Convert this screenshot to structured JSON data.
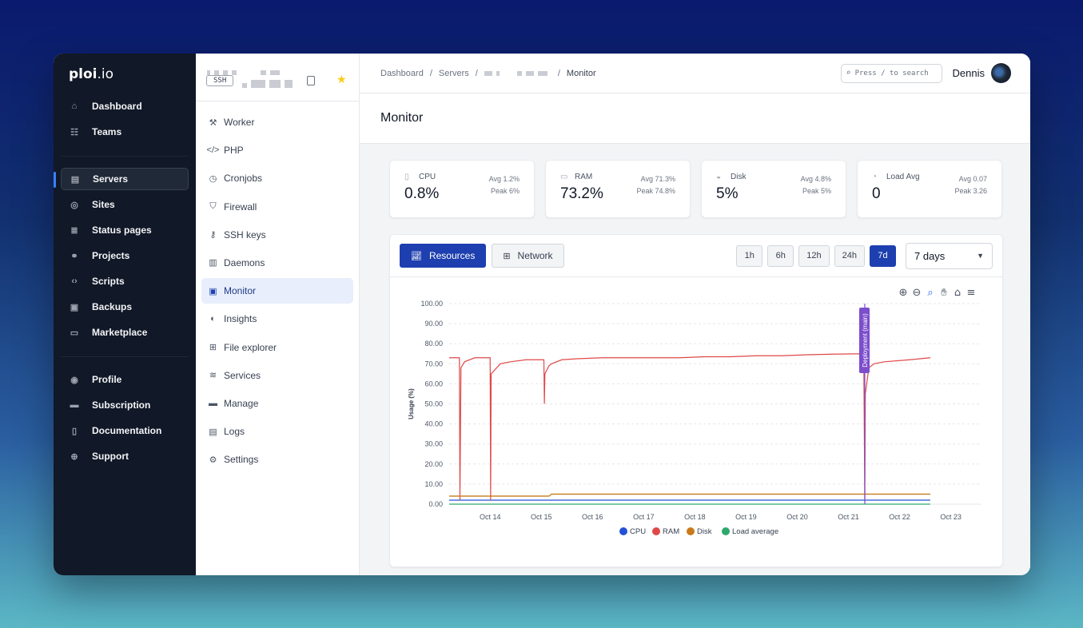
{
  "brand": {
    "name_bold": "ploi",
    "name_rest": ".io"
  },
  "nav": {
    "group1": [
      {
        "label": "Dashboard",
        "icon": "home-icon",
        "glyph": "⌂"
      },
      {
        "label": "Teams",
        "icon": "users-icon",
        "glyph": "☷"
      }
    ],
    "group2": [
      {
        "label": "Servers",
        "icon": "server-icon",
        "glyph": "▤",
        "active": true
      },
      {
        "label": "Sites",
        "icon": "globe-icon",
        "glyph": "◎"
      },
      {
        "label": "Status pages",
        "icon": "database-icon",
        "glyph": "≣"
      },
      {
        "label": "Projects",
        "icon": "flow-icon",
        "glyph": "⚭"
      },
      {
        "label": "Scripts",
        "icon": "code-icon",
        "glyph": "‹›"
      },
      {
        "label": "Backups",
        "icon": "archive-icon",
        "glyph": "▣"
      },
      {
        "label": "Marketplace",
        "icon": "store-icon",
        "glyph": "▭"
      }
    ],
    "group3": [
      {
        "label": "Profile",
        "icon": "user-circle-icon",
        "glyph": "◉"
      },
      {
        "label": "Subscription",
        "icon": "credit-card-icon",
        "glyph": "▬"
      },
      {
        "label": "Documentation",
        "icon": "book-icon",
        "glyph": "▯"
      },
      {
        "label": "Support",
        "icon": "lifebuoy-icon",
        "glyph": "⊕"
      }
    ]
  },
  "server": {
    "ssh_label": "SSH"
  },
  "subnav": [
    {
      "label": "Worker",
      "icon": "hammer-icon",
      "glyph": "⚒"
    },
    {
      "label": "PHP",
      "icon": "code-icon",
      "glyph": "</>"
    },
    {
      "label": "Cronjobs",
      "icon": "clock-icon",
      "glyph": "◷"
    },
    {
      "label": "Firewall",
      "icon": "shield-icon",
      "glyph": "⛉"
    },
    {
      "label": "SSH keys",
      "icon": "key-icon",
      "glyph": "⚷"
    },
    {
      "label": "Daemons",
      "icon": "chip-icon",
      "glyph": "▥"
    },
    {
      "label": "Monitor",
      "icon": "monitor-chart-icon",
      "glyph": "▣",
      "active": true
    },
    {
      "label": "Insights",
      "icon": "insights-icon",
      "glyph": "◐"
    },
    {
      "label": "File explorer",
      "icon": "folder-tree-icon",
      "glyph": "⊞"
    },
    {
      "label": "Services",
      "icon": "services-icon",
      "glyph": "≋"
    },
    {
      "label": "Manage",
      "icon": "briefcase-icon",
      "glyph": "▬"
    },
    {
      "label": "Logs",
      "icon": "clipboard-icon",
      "glyph": "▤"
    },
    {
      "label": "Settings",
      "icon": "gear-icon",
      "glyph": "⚙"
    }
  ],
  "breadcrumb": {
    "items": [
      "Dashboard",
      "Servers"
    ],
    "separator": "/",
    "current": "Monitor"
  },
  "search": {
    "placeholder": "Press / to search"
  },
  "user": {
    "name": "Dennis"
  },
  "page": {
    "title": "Monitor"
  },
  "stats": [
    {
      "label": "CPU",
      "value": "0.8%",
      "avg": "Avg 1.2%",
      "peak": "Peak 6%",
      "icon": "cpu-icon",
      "glyph": "▯"
    },
    {
      "label": "RAM",
      "value": "73.2%",
      "avg": "Avg 71.3%",
      "peak": "Peak 74.8%",
      "icon": "memory-icon",
      "glyph": "▭"
    },
    {
      "label": "Disk",
      "value": "5%",
      "avg": "Avg 4.8%",
      "peak": "Peak 5%",
      "icon": "disk-icon",
      "glyph": "◒"
    },
    {
      "label": "Load Avg",
      "value": "0",
      "avg": "Avg 0.07",
      "peak": "Peak 3.26",
      "icon": "gauge-icon",
      "glyph": "◔"
    }
  ],
  "tabs": {
    "resources": "Resources",
    "network": "Network"
  },
  "ranges": [
    {
      "label": "1h"
    },
    {
      "label": "6h"
    },
    {
      "label": "12h"
    },
    {
      "label": "24h"
    },
    {
      "label": "7d",
      "active": true
    }
  ],
  "period_select": {
    "value": "7 days"
  },
  "colors": {
    "cpu": "#2450d8",
    "ram": "#e04848",
    "disk": "#c97a1a",
    "load": "#2ea86b",
    "annotation": "#7c4dcc",
    "accent": "#1d3faf"
  },
  "chart_data": {
    "type": "line",
    "ylabel": "Usage (%)",
    "ylim": [
      0,
      100
    ],
    "yticks": [
      "0.00",
      "10.00",
      "20.00",
      "30.00",
      "40.00",
      "50.00",
      "60.00",
      "70.00",
      "80.00",
      "90.00",
      "100.00"
    ],
    "x": [
      0,
      0.2,
      0.21,
      0.23,
      0.3,
      0.5,
      0.8,
      0.81,
      0.82,
      1.0,
      1.2,
      1.5,
      1.7,
      1.85,
      1.86,
      1.87,
      1.95,
      2.0,
      2.2,
      2.5,
      3.0,
      3.5,
      4.0,
      4.5,
      5.0,
      5.5,
      6.0,
      6.5,
      7.0,
      7.5,
      8.1,
      8.12,
      8.13,
      8.2,
      8.3,
      8.5,
      9.0,
      9.2,
      9.4
    ],
    "xlabels": [
      "Oct 14",
      "Oct 15",
      "Oct 16",
      "Oct 17",
      "Oct 18",
      "Oct 19",
      "Oct 20",
      "Oct 21",
      "Oct 22",
      "Oct 23"
    ],
    "xticks_at": [
      0.8,
      1.8,
      2.8,
      3.8,
      4.8,
      5.8,
      6.8,
      7.8,
      8.8,
      9.8
    ],
    "series": [
      {
        "name": "CPU",
        "values": [
          2,
          2,
          2,
          2,
          2,
          2,
          2,
          2,
          2,
          2,
          2,
          2,
          2,
          2,
          2,
          2,
          2,
          2,
          2,
          2,
          2,
          2,
          2,
          2,
          2,
          2,
          2,
          2,
          2,
          2,
          2,
          2,
          2,
          2,
          2,
          2,
          2,
          2,
          2
        ]
      },
      {
        "name": "RAM",
        "values": [
          73,
          73,
          2,
          68,
          71,
          73,
          73,
          2,
          65,
          70,
          71,
          72,
          72,
          72,
          50,
          65,
          69,
          70,
          72,
          72.5,
          73,
          73,
          73,
          73,
          73.5,
          73.5,
          74,
          74,
          74.5,
          74.8,
          75,
          1,
          55,
          68,
          70,
          71,
          72,
          72.5,
          73
        ]
      },
      {
        "name": "Disk",
        "values": [
          4,
          4,
          4,
          4,
          4,
          4,
          4,
          4,
          4,
          4,
          4,
          4,
          4,
          4,
          4,
          4,
          4,
          5,
          5,
          5,
          5,
          5,
          5,
          5,
          5,
          5,
          5,
          5,
          5,
          5,
          5,
          5,
          5,
          5,
          5,
          5,
          5,
          5,
          5
        ]
      },
      {
        "name": "Load average",
        "values": [
          0,
          0,
          0,
          0,
          0,
          0,
          0,
          0,
          0,
          0,
          0,
          0,
          0,
          0,
          0,
          0,
          0,
          0,
          0,
          0,
          0,
          0,
          0,
          0,
          0,
          0,
          0,
          0,
          0,
          0,
          0,
          0,
          0,
          0,
          0,
          0,
          0,
          0,
          0
        ]
      }
    ],
    "annotations": [
      {
        "x": 8.12,
        "label": "Deployment (main)"
      }
    ],
    "legend": "bottom-center",
    "grid": true
  }
}
